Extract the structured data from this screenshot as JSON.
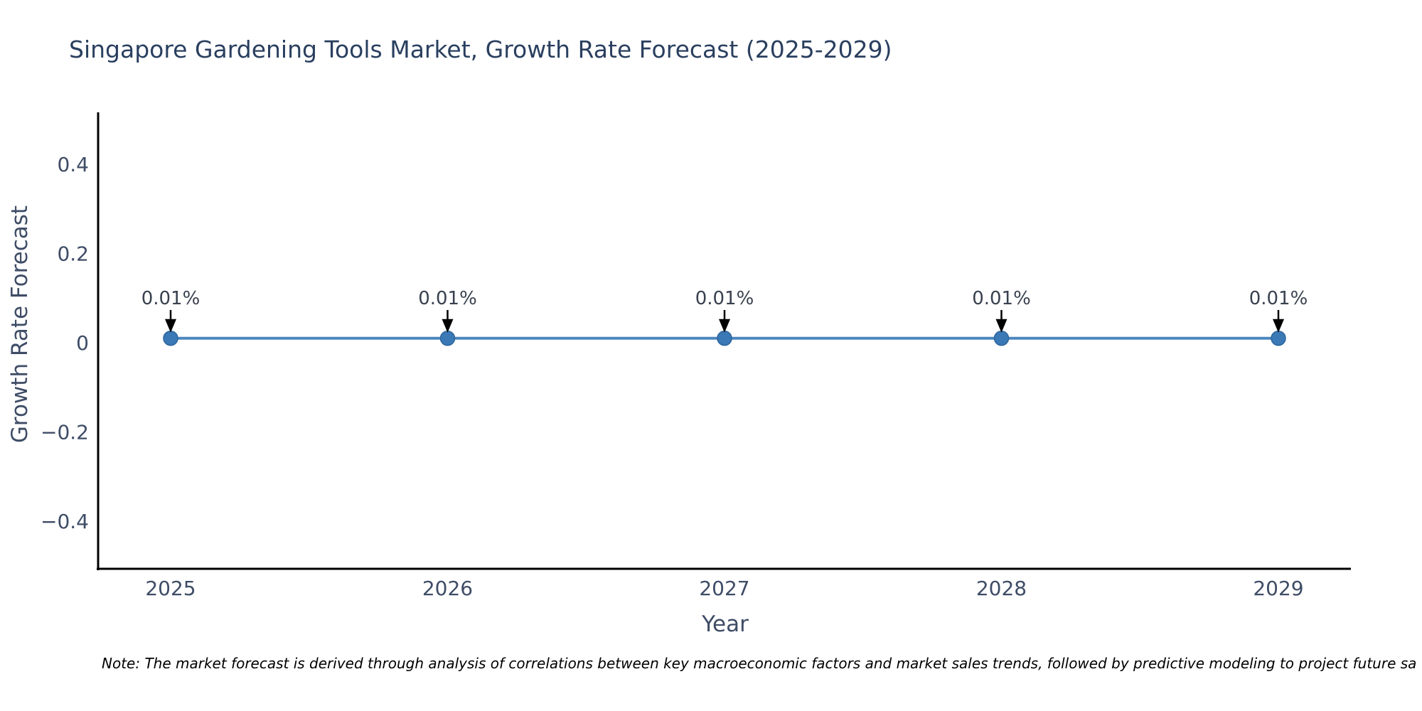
{
  "title": "Singapore Gardening Tools Market, Growth Rate Forecast (2025-2029)",
  "note": "Note: The market forecast is derived through analysis of correlations between key macroeconomic factors and market sales trends, followed by predictive modeling to project future sa",
  "chart_data": {
    "type": "line",
    "title": "Singapore Gardening Tools Market, Growth Rate Forecast (2025-2029)",
    "xlabel": "Year",
    "ylabel": "Growth Rate Forecast",
    "categories": [
      "2025",
      "2026",
      "2027",
      "2028",
      "2029"
    ],
    "series": [
      {
        "name": "Growth Rate Forecast",
        "values": [
          0.01,
          0.01,
          0.01,
          0.01,
          0.01
        ]
      }
    ],
    "point_labels": [
      "0.01%",
      "0.01%",
      "0.01%",
      "0.01%",
      "0.01%"
    ],
    "yticks": [
      0.4,
      0.2,
      0,
      -0.2,
      -0.4
    ],
    "ytick_labels": [
      "0.4",
      "0.2",
      "0",
      "−0.2",
      "−0.4"
    ],
    "ylim": [
      -0.5072,
      0.5168
    ],
    "grid": false,
    "legend": false,
    "annotation_style": "down-arrow",
    "colors": {
      "line": "#4d87be",
      "marker": "#3a79b6",
      "marker_edge": "#2e659c",
      "arrow": "#000000",
      "axis": "#000000",
      "title_text": "#2a3f5f",
      "tick_text": "#3e4c66",
      "annotation_text": "#39414f",
      "note_text": "#000000",
      "background": "#ffffff"
    }
  }
}
